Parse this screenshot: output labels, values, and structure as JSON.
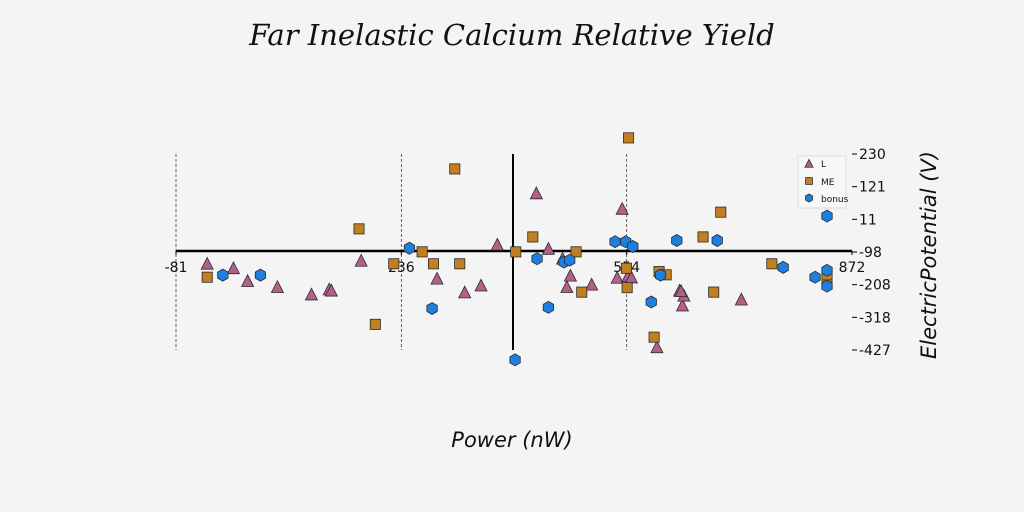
{
  "chart_data": {
    "type": "scatter",
    "title": "Far Inelastic Calcium Relative Yield",
    "xlabel": "Power (nW)",
    "ylabel": "ElectricPotential (V)",
    "xlim": [
      -81,
      872
    ],
    "ylim": [
      -427,
      230
    ],
    "xticks": [
      "-81",
      "236",
      "554",
      "872"
    ],
    "yticks": [
      "230",
      "121",
      "11",
      "-98",
      "-208",
      "-318",
      "-427"
    ],
    "grid": "vertical dashed lines at x ticks",
    "legend_position": "top-right",
    "colors": {
      "L": "#b45f8a",
      "ME": "#c17f20",
      "bonus": "#1e7fe0"
    },
    "series": [
      {
        "name": "L",
        "marker": "triangle",
        "color": "#b45f8a",
        "x": [
          -37,
          0,
          20,
          62,
          110,
          135,
          138,
          180,
          287,
          326,
          349,
          372,
          427,
          444,
          464,
          470,
          475,
          505,
          541,
          548,
          556,
          561,
          597,
          633,
          629,
          635,
          631,
          716
        ],
        "y": [
          -140,
          -155,
          -198,
          -218,
          -243,
          -226,
          -230,
          -130,
          -190,
          -236,
          -213,
          -76,
          96,
          -90,
          -123,
          -218,
          -180,
          -210,
          -187,
          44,
          -182,
          -186,
          -420,
          -280,
          -230,
          -247,
          -232,
          -260
        ]
      },
      {
        "name": "ME",
        "marker": "square",
        "color": "#c17f20",
        "x": [
          -37,
          177,
          200,
          226,
          266,
          282,
          312,
          319,
          398,
          422,
          491,
          483,
          557,
          554,
          555,
          593,
          600,
          610,
          677,
          662,
          687,
          759,
          891,
          918
        ],
        "y": [
          -183,
          -21,
          -341,
          -138,
          -98,
          -138,
          180,
          -138,
          -98,
          -48,
          -233,
          -98,
          284,
          -153,
          -218,
          -384,
          -164,
          -175,
          -233,
          -48,
          35,
          -138,
          -183,
          -175
        ]
      },
      {
        "name": "bonus",
        "marker": "hexagon",
        "color": "#1e7fe0",
        "x": [
          -15,
          38,
          248,
          280,
          397,
          428,
          444,
          466,
          474,
          538,
          553,
          563,
          589,
          602,
          625,
          682,
          775,
          820,
          897,
          903,
          910
        ],
        "y": [
          -176,
          -176,
          -86,
          -288,
          -460,
          -121,
          -284,
          -132,
          -126,
          -64,
          -64,
          -80,
          -266,
          -176,
          -60,
          -60,
          -150,
          -183,
          -160,
          -213,
          22
        ]
      }
    ]
  }
}
